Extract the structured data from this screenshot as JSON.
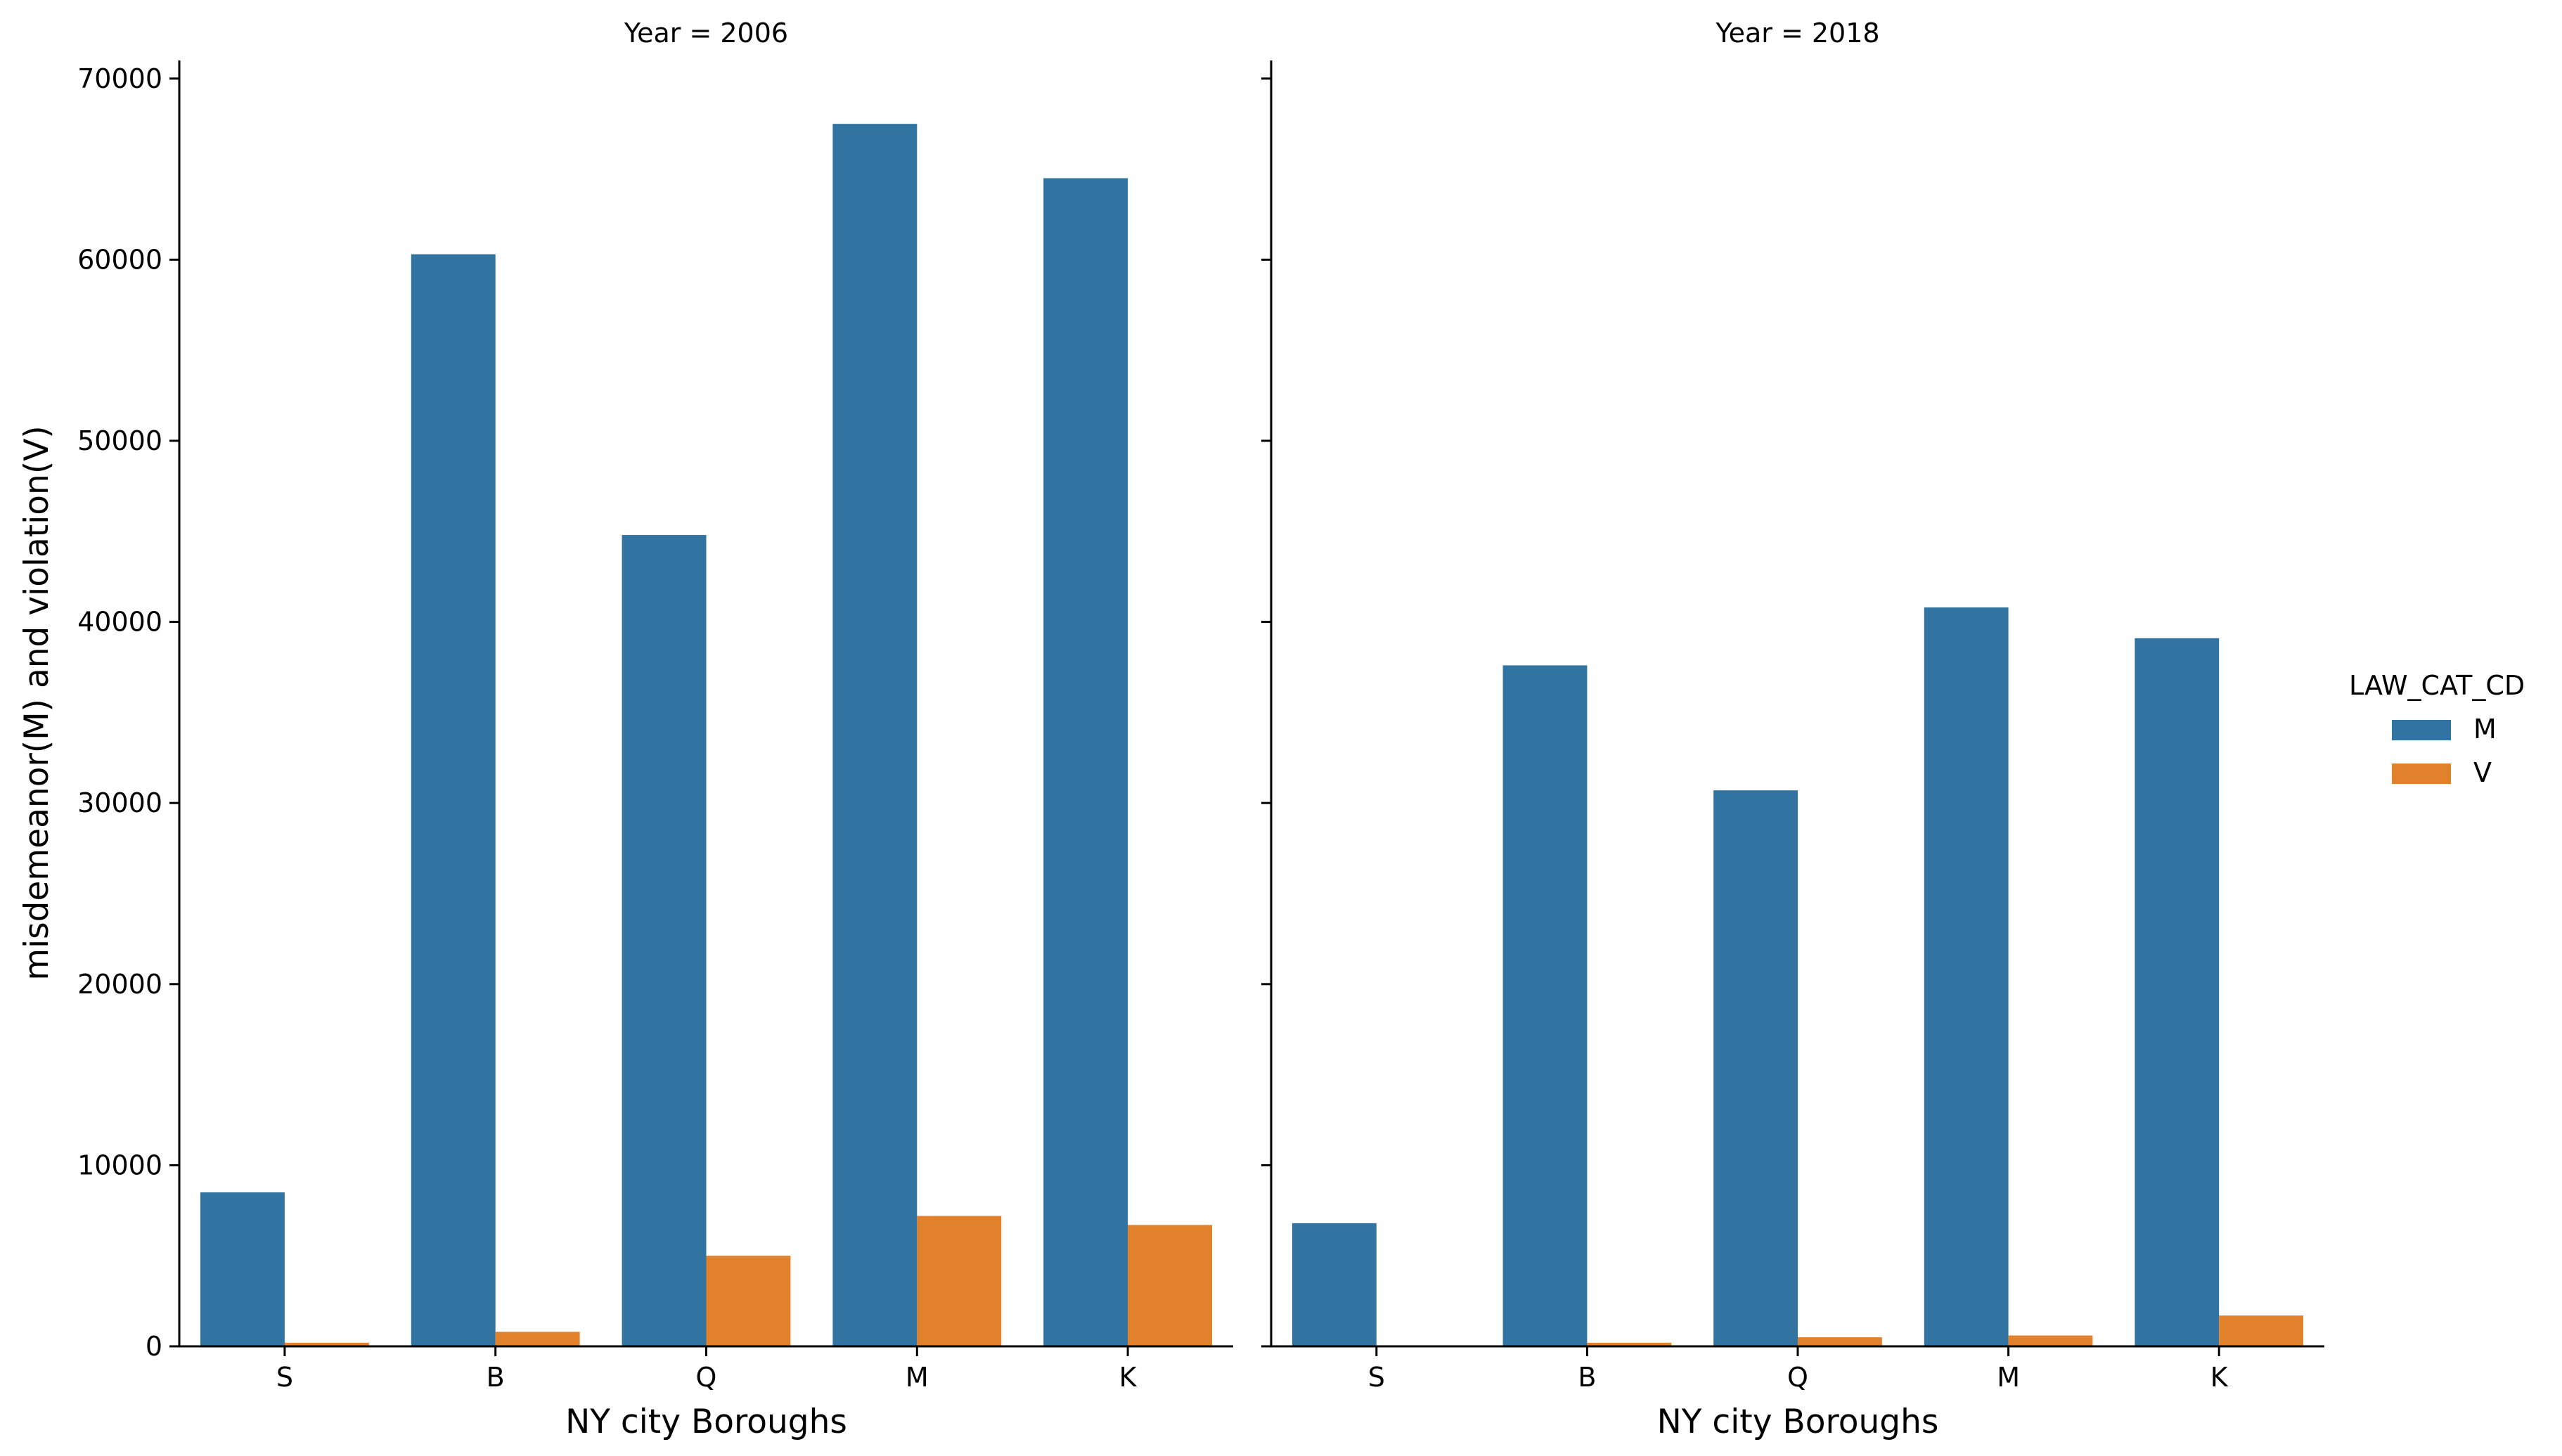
{
  "chart_data": {
    "type": "bar",
    "layout": "facet-grid",
    "shared_y_axis": true,
    "ylabel": "misdemeanor(M) and violation(V)",
    "ylim": [
      0,
      71000
    ],
    "y_ticks": [
      0,
      10000,
      20000,
      30000,
      40000,
      50000,
      60000,
      70000
    ],
    "grid": false,
    "legend": {
      "title": "LAW_CAT_CD",
      "placement": "right",
      "entries": [
        {
          "label": "M",
          "color": "#3274a1"
        },
        {
          "label": "V",
          "color": "#e1812c"
        }
      ]
    },
    "facets": [
      {
        "title": "Year = 2006",
        "xlabel": "NY city Boroughs",
        "categories": [
          "S",
          "B",
          "Q",
          "M",
          "K"
        ],
        "series": [
          {
            "name": "M",
            "color": "#3274a1",
            "values": [
              8500,
              60300,
              44800,
              67500,
              64500
            ]
          },
          {
            "name": "V",
            "color": "#e1812c",
            "values": [
              200,
              800,
              5000,
              7200,
              6700
            ]
          }
        ]
      },
      {
        "title": "Year = 2018",
        "xlabel": "NY city Boroughs",
        "categories": [
          "S",
          "B",
          "Q",
          "M",
          "K"
        ],
        "series": [
          {
            "name": "M",
            "color": "#3274a1",
            "values": [
              6800,
              37600,
              30700,
              40800,
              39100
            ]
          },
          {
            "name": "V",
            "color": "#e1812c",
            "values": [
              0,
              200,
              500,
              600,
              1700
            ]
          }
        ]
      }
    ]
  }
}
